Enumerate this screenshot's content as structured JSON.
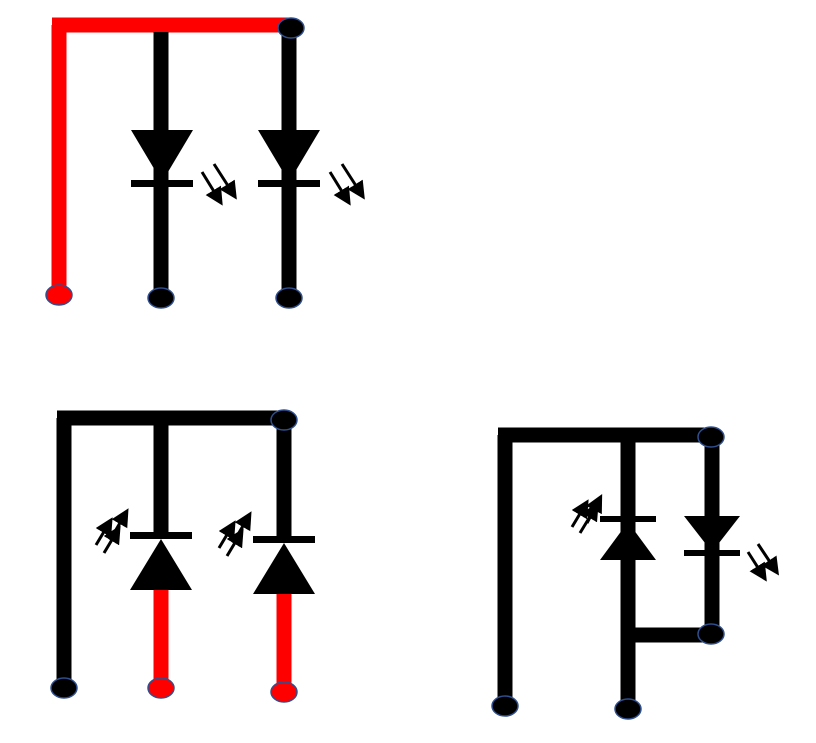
{
  "colors": {
    "background": "#ffffff",
    "wire": "#000000",
    "highlight_wire": "#ff0000",
    "terminal_outline": "#2f4f8f"
  },
  "circuits": [
    {
      "id": "circuit-1",
      "description_icon": "two-leds-forward-common-anode",
      "highlighted_wire": "common-rail",
      "diodes": [
        {
          "type": "led-emitting",
          "direction": "down"
        },
        {
          "type": "led-emitting",
          "direction": "down"
        }
      ]
    },
    {
      "id": "circuit-2",
      "description_icon": "two-photodiodes-reverse",
      "highlighted_wire": "diode-legs",
      "diodes": [
        {
          "type": "photodiode-receiving",
          "direction": "up"
        },
        {
          "type": "photodiode-receiving",
          "direction": "up"
        }
      ]
    },
    {
      "id": "circuit-3",
      "description_icon": "led-and-photodiode-mixed",
      "highlighted_wire": "none",
      "diodes": [
        {
          "type": "photodiode-receiving",
          "direction": "up"
        },
        {
          "type": "led-emitting",
          "direction": "down"
        }
      ]
    }
  ]
}
